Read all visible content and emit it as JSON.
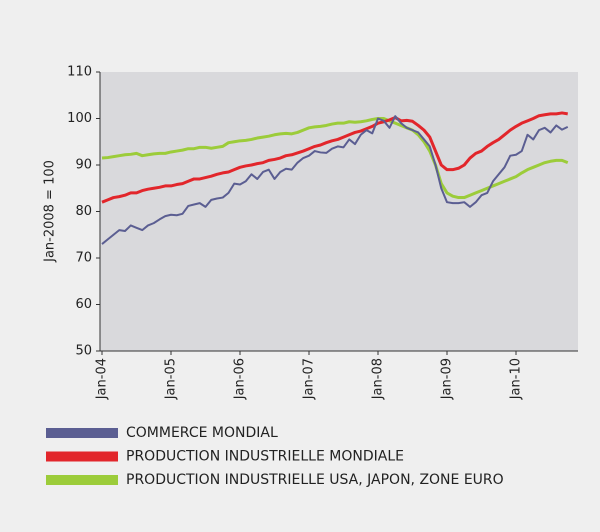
{
  "chart_data": {
    "type": "line",
    "y_label": "Jan-2008 = 100",
    "categories": [
      "Jan-04",
      null,
      null,
      null,
      null,
      null,
      null,
      null,
      null,
      null,
      null,
      null,
      "Jan-05",
      null,
      null,
      null,
      null,
      null,
      null,
      null,
      null,
      null,
      null,
      null,
      "Jan-06",
      null,
      null,
      null,
      null,
      null,
      null,
      null,
      null,
      null,
      null,
      null,
      "Jan-07",
      null,
      null,
      null,
      null,
      null,
      null,
      null,
      null,
      null,
      null,
      null,
      "Jan-08",
      null,
      null,
      null,
      null,
      null,
      null,
      null,
      null,
      null,
      null,
      null,
      "Jan-09",
      null,
      null,
      null,
      null,
      null,
      null,
      null,
      null,
      null,
      null,
      null,
      "Jan-10",
      null,
      null,
      null,
      null,
      null,
      null,
      null,
      null,
      null
    ],
    "series": [
      {
        "name": "COMMERCE MONDIAL",
        "color": "#5b5e92",
        "values": [
          73,
          74,
          75,
          76,
          75.8,
          77,
          76.5,
          76,
          77,
          77.5,
          78.3,
          79,
          79.3,
          79.2,
          79.5,
          81.2,
          81.5,
          81.8,
          81,
          82.5,
          82.8,
          83,
          84,
          86,
          85.8,
          86.5,
          88,
          87,
          88.5,
          89,
          87,
          88.5,
          89.2,
          89,
          90.5,
          91.5,
          92,
          93,
          92.7,
          92.6,
          93.5,
          94,
          93.8,
          95.5,
          94.5,
          96.5,
          97.5,
          96.8,
          100,
          99.5,
          98,
          100.5,
          99,
          98,
          97.5,
          97,
          95.5,
          94,
          90,
          85,
          82,
          81.8,
          81.8,
          82,
          81,
          82,
          83.5,
          84,
          86.5,
          88,
          89.5,
          92,
          92.2,
          93,
          96.5,
          95.5,
          97.5,
          98,
          97,
          98.5,
          97.6,
          98.2
        ]
      },
      {
        "name": "PRODUCTION INDUSTRIELLE MONDIALE",
        "color": "#e2262b",
        "values": [
          82,
          82.5,
          83,
          83.2,
          83.5,
          84,
          84,
          84.5,
          84.8,
          85,
          85.2,
          85.5,
          85.5,
          85.8,
          86,
          86.5,
          87,
          87,
          87.3,
          87.6,
          88,
          88.3,
          88.5,
          89,
          89.5,
          89.8,
          90,
          90.3,
          90.5,
          91,
          91.2,
          91.5,
          92,
          92.2,
          92.6,
          93,
          93.5,
          94,
          94.3,
          94.8,
          95.2,
          95.5,
          96,
          96.5,
          97,
          97.3,
          97.8,
          98.3,
          99,
          99.3,
          99.7,
          100.2,
          99.5,
          99.6,
          99.4,
          98.5,
          97.5,
          96,
          93,
          90,
          89,
          89,
          89.3,
          90,
          91.5,
          92.5,
          93,
          94,
          94.8,
          95.5,
          96.5,
          97.5,
          98.3,
          99,
          99.5,
          100,
          100.6,
          100.8,
          101,
          101,
          101.2,
          101
        ]
      },
      {
        "name": "PRODUCTION INDUSTRIELLE USA, JAPON, ZONE EURO",
        "color": "#9ccc3a",
        "values": [
          91.5,
          91.6,
          91.8,
          92,
          92.2,
          92.3,
          92.5,
          92,
          92.2,
          92.4,
          92.5,
          92.5,
          92.8,
          93,
          93.2,
          93.5,
          93.5,
          93.8,
          93.8,
          93.6,
          93.8,
          94,
          94.8,
          95,
          95.2,
          95.3,
          95.5,
          95.8,
          96,
          96.2,
          96.5,
          96.7,
          96.8,
          96.7,
          97,
          97.5,
          98,
          98.2,
          98.3,
          98.5,
          98.8,
          99,
          99,
          99.3,
          99.2,
          99.3,
          99.5,
          99.8,
          100,
          100,
          99.5,
          99,
          98.5,
          98,
          97.5,
          96.5,
          95,
          93,
          90,
          86,
          84,
          83.3,
          83,
          83,
          83.5,
          84,
          84.5,
          85,
          85.5,
          86,
          86.5,
          87,
          87.5,
          88.3,
          89,
          89.5,
          90,
          90.5,
          90.8,
          91,
          91,
          90.5
        ]
      }
    ],
    "ylim": [
      50,
      110
    ],
    "yticks": [
      50,
      60,
      70,
      80,
      90,
      100,
      110
    ],
    "grid": false
  }
}
